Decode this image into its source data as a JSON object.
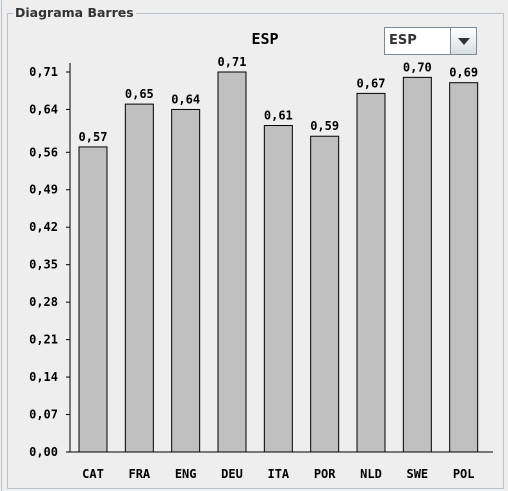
{
  "panel": {
    "title": "Diagrama Barres"
  },
  "selector": {
    "selected": "ESP"
  },
  "chart_data": {
    "type": "bar",
    "title": "ESP",
    "xlabel": "",
    "ylabel": "",
    "categories": [
      "CAT",
      "FRA",
      "ENG",
      "DEU",
      "ITA",
      "POR",
      "NLD",
      "SWE",
      "POL"
    ],
    "values": [
      0.57,
      0.65,
      0.64,
      0.71,
      0.61,
      0.59,
      0.67,
      0.7,
      0.69
    ],
    "value_labels": [
      "0,57",
      "0,65",
      "0,64",
      "0,71",
      "0,61",
      "0,59",
      "0,67",
      "0,70",
      "0,69"
    ],
    "yticks": [
      0.0,
      0.07,
      0.14,
      0.21,
      0.28,
      0.35,
      0.42,
      0.49,
      0.56,
      0.64,
      0.71
    ],
    "ytick_labels": [
      "0,00",
      "0,07",
      "0,14",
      "0,21",
      "0,28",
      "0,35",
      "0,42",
      "0,49",
      "0,56",
      "0,64",
      "0,71"
    ],
    "ylim": [
      0,
      0.71
    ],
    "grid": false,
    "bar_color": "#c0c0c0",
    "bar_edge_color": "#000000"
  }
}
